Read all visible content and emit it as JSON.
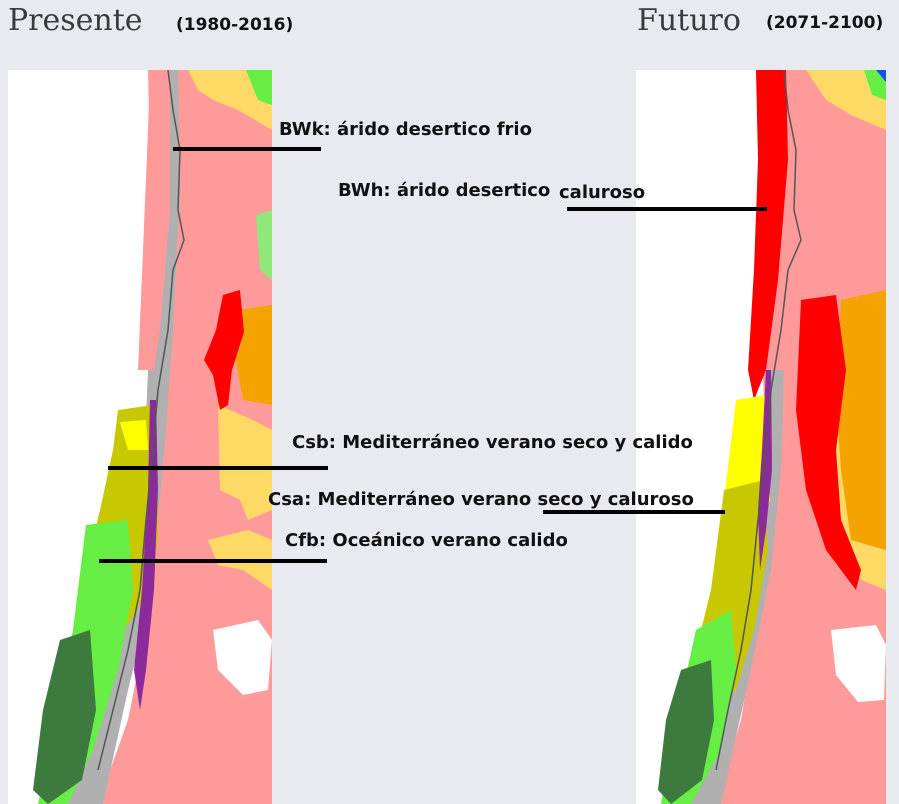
{
  "panels": {
    "present": {
      "title": "Presente",
      "period": "(1980-2016)"
    },
    "future": {
      "title": "Futuro",
      "period": "(2071-2100)"
    }
  },
  "annotations": {
    "bwk": "BWk: árido desertico frio",
    "bwh_main": "BWh: árido desertico",
    "bwh_tail": "caluroso",
    "csb": "Csb: Mediterráneo verano seco y calido",
    "csa": "Csa: Mediterráneo verano seco y caluroso",
    "cfb": "Cfb: Oceánico verano calido"
  },
  "legend_colors": {
    "BWk": "#ff9a9a",
    "BWh": "#ff0000",
    "Csb": "#c8c800",
    "Csa": "#ffff00",
    "Cfb": "#66ee44",
    "BSk": "#ffd966",
    "BSh": "#f5a300",
    "ET": "#b0b0b0",
    "Dsc": "#8c2a9c",
    "ocean": "#ffffff"
  }
}
